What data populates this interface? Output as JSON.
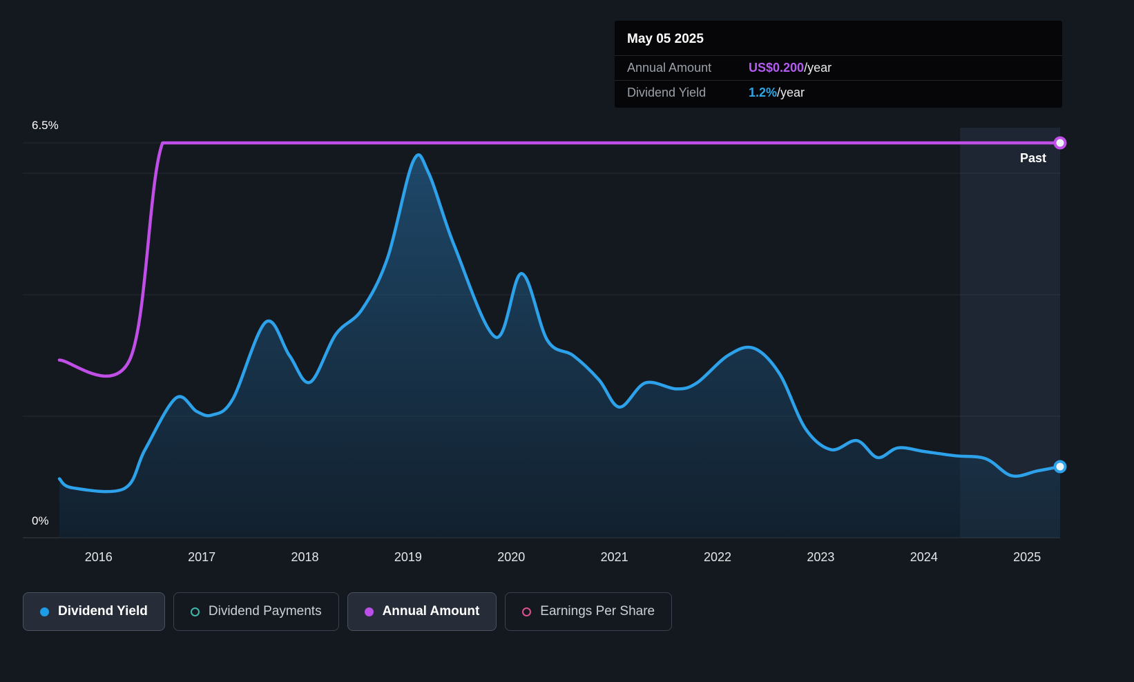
{
  "tooltip": {
    "date": "May 05 2025",
    "rows": [
      {
        "label": "Annual Amount",
        "value": "US$0.200",
        "suffix": "/year",
        "color": "#b35cf0"
      },
      {
        "label": "Dividend Yield",
        "value": "1.2%",
        "suffix": "/year",
        "color": "#2ea7e9"
      }
    ]
  },
  "axis": {
    "y_top_label": "6.5%",
    "y_bottom_label": "0%"
  },
  "past_label": "Past",
  "legend": [
    {
      "label": "Dividend Yield",
      "marker": "filled-circle",
      "color": "#1f9ce6",
      "active": true
    },
    {
      "label": "Dividend Payments",
      "marker": "outline-circle",
      "color": "#3fb8ab",
      "active": false
    },
    {
      "label": "Annual Amount",
      "marker": "filled-circle",
      "color": "#bb4fe8",
      "active": true
    },
    {
      "label": "Earnings Per Share",
      "marker": "outline-circle",
      "color": "#de5090",
      "active": false
    }
  ],
  "chart_data": {
    "type": "area",
    "x_range": [
      2015.62,
      2025.32
    ],
    "x_tick_labels": [
      "2016",
      "2017",
      "2018",
      "2019",
      "2020",
      "2021",
      "2022",
      "2023",
      "2024",
      "2025"
    ],
    "y_axis": {
      "min": 0,
      "max": 6.5,
      "unit": "%",
      "top_label": "6.5%",
      "bottom_label": "0%"
    },
    "gridlines_y_values": [
      0,
      2,
      4,
      6,
      6.5
    ],
    "grid": true,
    "legend_position": "bottom",
    "past_region_start_x": 2024.35,
    "series": [
      {
        "name": "Dividend Yield",
        "unit": "%",
        "color": "#2da2ea",
        "fill": true,
        "axis_max": 6.5,
        "points": [
          [
            2015.62,
            0.97
          ],
          [
            2015.75,
            0.82
          ],
          [
            2016.25,
            0.81
          ],
          [
            2016.45,
            1.45
          ],
          [
            2016.75,
            2.3
          ],
          [
            2016.95,
            2.08
          ],
          [
            2017.1,
            2.02
          ],
          [
            2017.3,
            2.28
          ],
          [
            2017.62,
            3.55
          ],
          [
            2017.85,
            3.0
          ],
          [
            2018.05,
            2.56
          ],
          [
            2018.3,
            3.35
          ],
          [
            2018.55,
            3.75
          ],
          [
            2018.8,
            4.6
          ],
          [
            2019.05,
            6.2
          ],
          [
            2019.2,
            6.0
          ],
          [
            2019.45,
            4.8
          ],
          [
            2019.85,
            3.3
          ],
          [
            2020.1,
            4.35
          ],
          [
            2020.35,
            3.25
          ],
          [
            2020.6,
            3.0
          ],
          [
            2020.85,
            2.6
          ],
          [
            2021.05,
            2.15
          ],
          [
            2021.3,
            2.55
          ],
          [
            2021.6,
            2.45
          ],
          [
            2021.8,
            2.55
          ],
          [
            2022.1,
            3.0
          ],
          [
            2022.35,
            3.12
          ],
          [
            2022.6,
            2.7
          ],
          [
            2022.85,
            1.8
          ],
          [
            2023.1,
            1.45
          ],
          [
            2023.35,
            1.6
          ],
          [
            2023.55,
            1.32
          ],
          [
            2023.75,
            1.48
          ],
          [
            2024.0,
            1.42
          ],
          [
            2024.3,
            1.35
          ],
          [
            2024.6,
            1.3
          ],
          [
            2024.85,
            1.02
          ],
          [
            2025.1,
            1.1
          ],
          [
            2025.32,
            1.17
          ]
        ]
      },
      {
        "name": "Annual Amount",
        "unit": "US$ per year",
        "color": "#c04fe8",
        "fill": false,
        "axis_max": 0.2,
        "points": [
          [
            2015.62,
            0.09
          ],
          [
            2016.3,
            0.09
          ],
          [
            2016.62,
            0.2
          ],
          [
            2017.1,
            0.2
          ],
          [
            2020.0,
            0.2
          ],
          [
            2025.32,
            0.2
          ]
        ]
      }
    ]
  }
}
